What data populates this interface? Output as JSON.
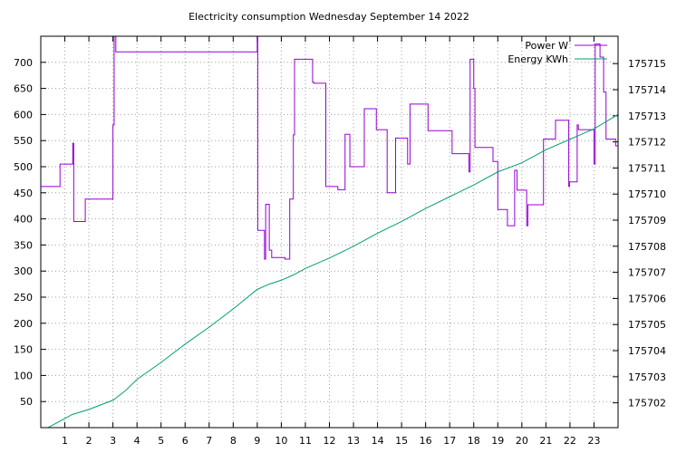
{
  "chart_data": {
    "type": "line",
    "title": "Electricity consumption Wednesday September 14 2022",
    "xlim": [
      0,
      24
    ],
    "x_ticks": [
      1,
      2,
      3,
      4,
      5,
      6,
      7,
      8,
      9,
      10,
      11,
      12,
      13,
      14,
      15,
      16,
      17,
      18,
      19,
      20,
      21,
      22,
      23
    ],
    "y_left": {
      "lim": [
        0,
        750
      ],
      "ticks": [
        50,
        100,
        150,
        200,
        250,
        300,
        350,
        400,
        450,
        500,
        550,
        600,
        650,
        700
      ]
    },
    "y_right": {
      "lim": [
        175701.05,
        175716.05
      ],
      "ticks": [
        175702,
        175703,
        175704,
        175705,
        175706,
        175707,
        175708,
        175709,
        175710,
        175711,
        175712,
        175713,
        175714,
        175715
      ]
    },
    "grid": true,
    "legend_position": "top-right",
    "series": [
      {
        "name": "Power W",
        "axis": "left",
        "color": "#9400d3",
        "step": true,
        "x": [
          0,
          0.8,
          1.33,
          1.37,
          1.85,
          3.0,
          3.05,
          3.1,
          3.12,
          9.0,
          9.02,
          9.3,
          9.35,
          9.5,
          9.6,
          9.8,
          10.15,
          10.35,
          10.5,
          10.55,
          11.3,
          11.35,
          11.85,
          12.35,
          12.65,
          12.85,
          13.45,
          13.95,
          14.4,
          14.75,
          15.25,
          15.3,
          15.35,
          16.1,
          16.4,
          17.1,
          17.35,
          17.8,
          17.85,
          18.0,
          18.05,
          18.8,
          19.0,
          19.4,
          19.7,
          19.8,
          20.2,
          20.25,
          20.9,
          21.4,
          21.95,
          21.98,
          22.3,
          22.35,
          22.5,
          22.62,
          22.7,
          22.9,
          23.0,
          23.05,
          23.15,
          23.25,
          23.4,
          23.5,
          23.8,
          23.9
        ],
        "y": [
          462,
          505,
          545,
          395,
          438,
          580,
          750,
          750,
          720,
          750,
          378,
          323,
          428,
          340,
          326,
          326,
          323,
          438,
          561,
          706,
          662,
          660,
          462,
          456,
          562,
          500,
          611,
          571,
          450,
          555,
          505,
          505,
          620,
          569,
          569,
          525,
          525,
          490,
          706,
          650,
          537,
          510,
          418,
          387,
          493,
          455,
          387,
          427,
          553,
          589,
          462,
          471,
          580,
          571,
          571,
          571,
          571,
          571,
          505,
          735,
          735,
          710,
          643,
          553,
          553,
          540
        ]
      },
      {
        "name": "Energy KWh",
        "axis": "right",
        "color": "#009e73",
        "step": false,
        "x": [
          0,
          1.0,
          1.3,
          2.0,
          3.0,
          3.5,
          4.0,
          5.0,
          6.0,
          7.0,
          8.0,
          9.0,
          9.5,
          10.0,
          10.5,
          11.0,
          12.0,
          13.0,
          14.0,
          15.0,
          16.0,
          17.0,
          18.0,
          19.0,
          20.0,
          21.0,
          22.0,
          23.0,
          24.0
        ],
        "y": [
          175700.9,
          175701.4,
          175701.55,
          175701.75,
          175702.1,
          175702.45,
          175702.9,
          175703.55,
          175704.25,
          175704.9,
          175705.6,
          175706.35,
          175706.55,
          175706.7,
          175706.9,
          175707.15,
          175707.55,
          175708.0,
          175708.5,
          175708.95,
          175709.45,
          175709.9,
          175710.35,
          175710.85,
          175711.2,
          175711.7,
          175712.1,
          175712.5,
          175713.05
        ]
      }
    ]
  }
}
